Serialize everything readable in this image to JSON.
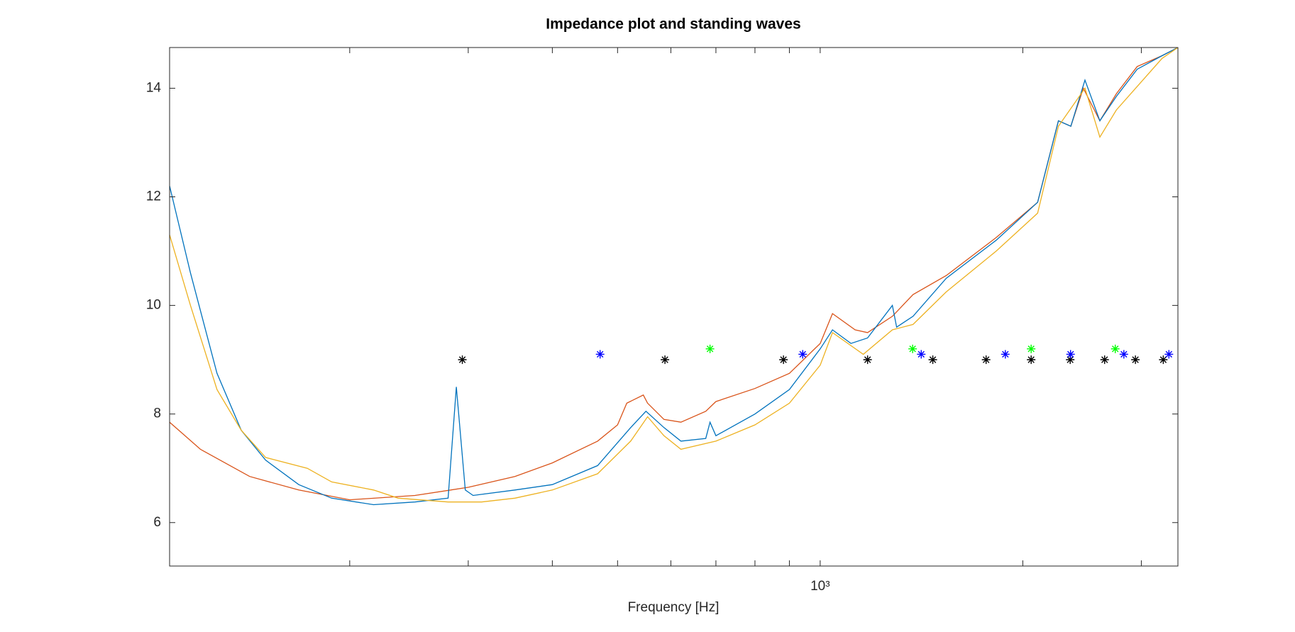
{
  "chart_data": {
    "type": "line",
    "title": "Impedance plot and standing waves",
    "xlabel": "Frequency [Hz]",
    "xscale": "log",
    "xlim": [
      108,
      3400
    ],
    "ylim": [
      5.2,
      14.75
    ],
    "xticks": [
      {
        "value": 1000,
        "label": "10³"
      }
    ],
    "xminorticks": [
      200,
      300,
      400,
      500,
      600,
      700,
      800,
      900,
      2000,
      3000
    ],
    "yticks": [
      6,
      8,
      10,
      12,
      14
    ],
    "series": [
      {
        "type": "line",
        "color": "#D95319",
        "x": [
          108,
          120,
          142,
          168,
          200,
          250,
          300,
          352,
          400,
          467,
          500,
          516,
          546,
          554,
          586,
          621,
          676,
          700,
          800,
          900,
          1000,
          1043,
          1127,
          1176,
          1280,
          1374,
          1539,
          1826,
          2104,
          2259,
          2357,
          2460,
          2603,
          2755,
          2958,
          3221,
          3400
        ],
        "values": [
          7.85,
          7.35,
          6.85,
          6.6,
          6.42,
          6.5,
          6.65,
          6.85,
          7.1,
          7.5,
          7.8,
          8.2,
          8.35,
          8.2,
          7.9,
          7.85,
          8.05,
          8.23,
          8.47,
          8.75,
          9.3,
          9.85,
          9.55,
          9.5,
          9.8,
          10.2,
          10.55,
          11.25,
          11.9,
          13.4,
          13.3,
          14.0,
          13.4,
          13.9,
          14.4,
          14.6,
          14.75
        ]
      },
      {
        "type": "line",
        "color": "#0072BD",
        "x": [
          108,
          116,
          127,
          138,
          150,
          168,
          188,
          217,
          250,
          280,
          288,
          297,
          305,
          352,
          400,
          467,
          523,
          551,
          586,
          621,
          676,
          686,
          700,
          800,
          900,
          1000,
          1043,
          1111,
          1176,
          1280,
          1299,
          1374,
          1539,
          1826,
          2104,
          2259,
          2357,
          2474,
          2603,
          2755,
          2958,
          3221,
          3400
        ],
        "values": [
          12.2,
          10.6,
          8.75,
          7.7,
          7.15,
          6.7,
          6.45,
          6.33,
          6.38,
          6.45,
          8.5,
          6.6,
          6.5,
          6.6,
          6.7,
          7.05,
          7.75,
          8.05,
          7.75,
          7.5,
          7.55,
          7.85,
          7.6,
          8.0,
          8.45,
          9.2,
          9.55,
          9.3,
          9.4,
          10.0,
          9.6,
          9.8,
          10.5,
          11.2,
          11.9,
          13.4,
          13.3,
          14.15,
          13.4,
          13.85,
          14.35,
          14.6,
          14.75
        ]
      },
      {
        "type": "line",
        "color": "#EDB120",
        "x": [
          108,
          116,
          127,
          138,
          150,
          173,
          188,
          217,
          236,
          280,
          314,
          352,
          400,
          467,
          523,
          554,
          586,
          621,
          700,
          800,
          900,
          1000,
          1043,
          1159,
          1280,
          1374,
          1539,
          1826,
          2104,
          2259,
          2474,
          2603,
          2755,
          3221,
          3400
        ],
        "values": [
          11.3,
          10.0,
          8.45,
          7.7,
          7.2,
          7.0,
          6.75,
          6.6,
          6.45,
          6.38,
          6.38,
          6.45,
          6.6,
          6.9,
          7.5,
          7.95,
          7.6,
          7.35,
          7.5,
          7.8,
          8.2,
          8.9,
          9.5,
          9.1,
          9.55,
          9.65,
          10.25,
          11.0,
          11.7,
          13.3,
          14.0,
          13.1,
          13.6,
          14.55,
          14.75
        ]
      },
      {
        "type": "scatter",
        "marker": "asterisk",
        "color": "#000000",
        "x": [
          294,
          588,
          882,
          1176,
          1470,
          1764,
          2058,
          2352,
          2646,
          2940,
          3234
        ],
        "values": [
          9,
          9,
          9,
          9,
          9,
          9,
          9,
          9,
          9,
          9,
          9
        ]
      },
      {
        "type": "scatter",
        "marker": "asterisk",
        "color": "#0000ff",
        "x": [
          471,
          942,
          1413,
          1884,
          2355,
          2826,
          3297
        ],
        "values": [
          9.1,
          9.1,
          9.1,
          9.1,
          9.1,
          9.1,
          9.1
        ]
      },
      {
        "type": "scatter",
        "marker": "asterisk",
        "color": "#00ff00",
        "x": [
          686,
          1372,
          2058,
          2744
        ],
        "values": [
          9.2,
          9.2,
          9.2,
          9.2
        ]
      }
    ]
  }
}
